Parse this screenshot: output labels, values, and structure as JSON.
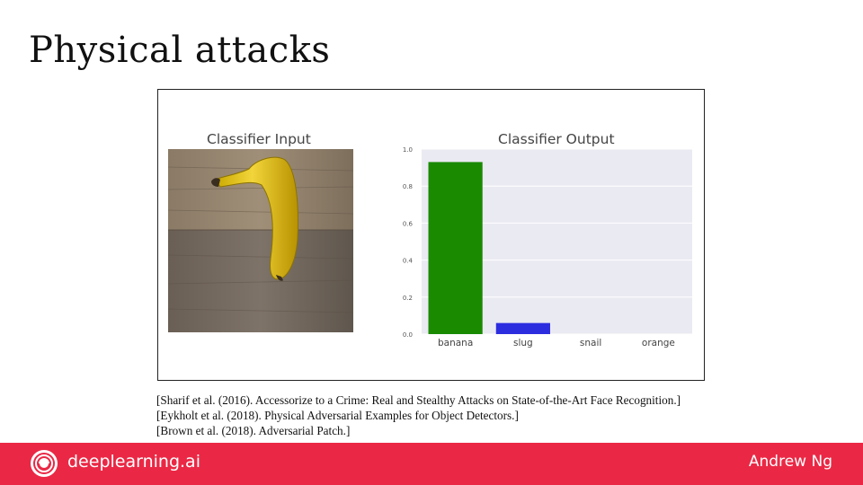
{
  "slide": {
    "title": "Physical attacks"
  },
  "figure": {
    "input_title": "Classifier Input",
    "output_title": "Classifier Output",
    "image_icon": "banana-on-wood-photo"
  },
  "chart_data": {
    "type": "bar",
    "title": "Classifier Output",
    "categories": [
      "banana",
      "slug",
      "snail",
      "orange"
    ],
    "values": [
      0.93,
      0.06,
      0.0,
      0.0
    ],
    "colors": [
      "#1a8a00",
      "#2d2de0",
      "#cccccc",
      "#cccccc"
    ],
    "ylim": [
      0,
      1.0
    ],
    "yticks": [
      "0.0",
      "0.2",
      "0.4",
      "0.6",
      "0.8",
      "1.0"
    ],
    "xlabel": "",
    "ylabel": "",
    "grid": true,
    "background": "#eaeaf2"
  },
  "references": [
    "[Sharif et al. (2016). Accessorize to a Crime: Real and Stealthy Attacks on State-of-the-Art Face Recognition.]",
    "[Eykholt et al. (2018). Physical Adversarial Examples for Object Detectors.]",
    "[Brown et al. (2018). Adversarial Patch.]"
  ],
  "footer": {
    "brand": "deeplearning.ai",
    "author": "Andrew Ng",
    "logo_icon": "deeplearning-logo-icon",
    "color": "#ea2845"
  }
}
